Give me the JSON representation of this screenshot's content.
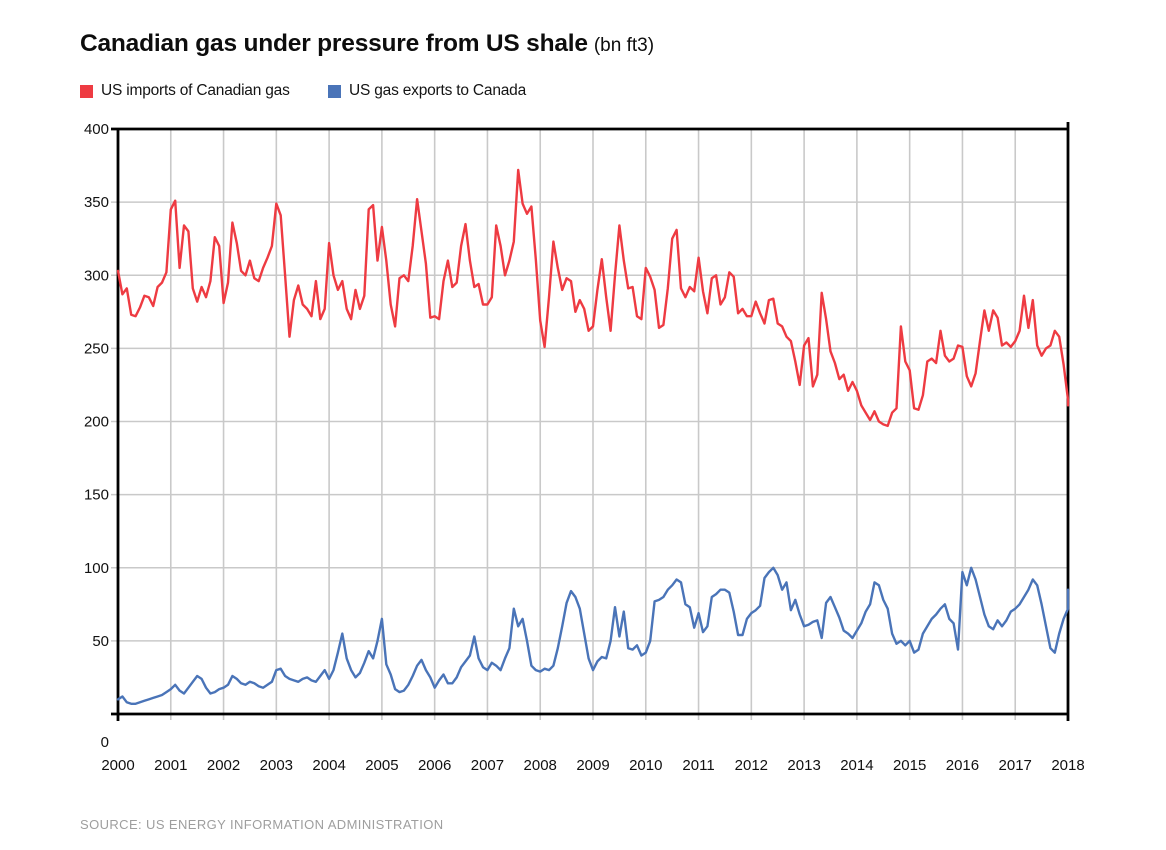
{
  "title": {
    "main": "Canadian gas under pressure from US shale",
    "suffix": "(bn ft3)"
  },
  "legend": {
    "items": [
      {
        "label": "US imports of Canadian gas",
        "color": "#ee3b42"
      },
      {
        "label": "US gas exports to Canada",
        "color": "#4a74b8"
      }
    ]
  },
  "source": "SOURCE: US ENERGY INFORMATION ADMINISTRATION",
  "colors": {
    "imports_line": "#ee3b42",
    "exports_line": "#4a74b8",
    "gridline": "#c9c9c9",
    "axis": "#000000",
    "tick_text": "#111111",
    "source_text": "#9e9e9e"
  },
  "chart_data": {
    "type": "line",
    "title": "Canadian gas under pressure from US shale (bn ft3)",
    "xlabel": "",
    "ylabel": "",
    "unit": "bn ft3",
    "grid": true,
    "legend_position": "top-left",
    "x_axis": {
      "start_year": 2000,
      "end_year": 2018,
      "frequency": "monthly",
      "tick_labels": [
        "2000",
        "2001",
        "2002",
        "2003",
        "2004",
        "2005",
        "2006",
        "2007",
        "2008",
        "2009",
        "2010",
        "2011",
        "2012",
        "2013",
        "2014",
        "2015",
        "2016",
        "2017",
        "2018"
      ]
    },
    "y_axis": {
      "min": 0,
      "max": 400,
      "step": 50,
      "tick_labels": [
        "0",
        "50",
        "100",
        "150",
        "200",
        "250",
        "300",
        "350",
        "400"
      ]
    },
    "series": [
      {
        "name": "US imports of Canadian gas",
        "color": "#ee3b42",
        "values": [
          303,
          287,
          291,
          273,
          272,
          278,
          286,
          285,
          279,
          292,
          295,
          302,
          345,
          351,
          305,
          334,
          330,
          291,
          282,
          292,
          285,
          296,
          326,
          320,
          281,
          295,
          336,
          322,
          303,
          300,
          310,
          298,
          296,
          305,
          312,
          320,
          349,
          341,
          300,
          258,
          283,
          293,
          280,
          277,
          272,
          296,
          270,
          277,
          322,
          300,
          290,
          296,
          277,
          270,
          290,
          277,
          286,
          345,
          348,
          310,
          333,
          310,
          280,
          265,
          298,
          300,
          296,
          320,
          352,
          330,
          308,
          271,
          272,
          270,
          296,
          310,
          292,
          295,
          320,
          335,
          310,
          292,
          294,
          280,
          280,
          285,
          334,
          320,
          300,
          310,
          323,
          372,
          349,
          342,
          347,
          311,
          269,
          251,
          285,
          323,
          305,
          290,
          298,
          296,
          275,
          283,
          277,
          262,
          265,
          290,
          311,
          285,
          262,
          300,
          334,
          310,
          291,
          292,
          272,
          270,
          305,
          299,
          290,
          264,
          266,
          291,
          325,
          331,
          291,
          285,
          292,
          289,
          312,
          289,
          274,
          298,
          300,
          280,
          285,
          302,
          299,
          274,
          277,
          272,
          272,
          282,
          274,
          267,
          283,
          284,
          267,
          265,
          258,
          255,
          241,
          225,
          252,
          257,
          224,
          232,
          288,
          270,
          248,
          240,
          229,
          232,
          221,
          227,
          221,
          211,
          206,
          201,
          207,
          200,
          198,
          197,
          206,
          209,
          265,
          241,
          235,
          209,
          208,
          218,
          241,
          243,
          240,
          262,
          245,
          241,
          243,
          252,
          251,
          231,
          224,
          233,
          255,
          276,
          262,
          276,
          271,
          252,
          254,
          251,
          255,
          262,
          286,
          264,
          283,
          252,
          245,
          250,
          252,
          262,
          258,
          239,
          215,
          211
        ]
      },
      {
        "name": "US gas exports to Canada",
        "color": "#4a74b8",
        "values": [
          10,
          12,
          8,
          7,
          7,
          8,
          9,
          10,
          11,
          12,
          13,
          15,
          17,
          20,
          16,
          14,
          18,
          22,
          26,
          24,
          18,
          14,
          15,
          17,
          18,
          20,
          26,
          24,
          21,
          20,
          22,
          21,
          19,
          18,
          20,
          22,
          30,
          31,
          26,
          24,
          23,
          22,
          24,
          25,
          23,
          22,
          26,
          30,
          24,
          30,
          42,
          55,
          38,
          30,
          25,
          28,
          35,
          43,
          38,
          50,
          65,
          34,
          27,
          17,
          15,
          16,
          20,
          26,
          33,
          37,
          30,
          25,
          18,
          23,
          27,
          21,
          21,
          25,
          32,
          36,
          40,
          53,
          38,
          32,
          30,
          35,
          33,
          30,
          38,
          45,
          72,
          60,
          65,
          50,
          33,
          30,
          29,
          31,
          30,
          33,
          45,
          60,
          76,
          84,
          80,
          72,
          55,
          38,
          30,
          36,
          39,
          38,
          50,
          73,
          53,
          70,
          45,
          44,
          47,
          40,
          42,
          50,
          77,
          78,
          80,
          85,
          88,
          92,
          90,
          75,
          73,
          59,
          69,
          56,
          60,
          80,
          82,
          85,
          85,
          83,
          70,
          54,
          54,
          65,
          69,
          71,
          74,
          93,
          97,
          100,
          95,
          85,
          90,
          71,
          78,
          68,
          60,
          61,
          63,
          64,
          52,
          76,
          80,
          73,
          66,
          57,
          55,
          52,
          57,
          62,
          70,
          75,
          90,
          88,
          78,
          72,
          55,
          48,
          50,
          47,
          50,
          42,
          44,
          55,
          60,
          65,
          68,
          72,
          75,
          65,
          62,
          44,
          97,
          88,
          100,
          92,
          80,
          68,
          60,
          58,
          64,
          60,
          64,
          70,
          72,
          75,
          80,
          85,
          92,
          88,
          75,
          60,
          45,
          42,
          55,
          65,
          72,
          85
        ]
      }
    ]
  }
}
